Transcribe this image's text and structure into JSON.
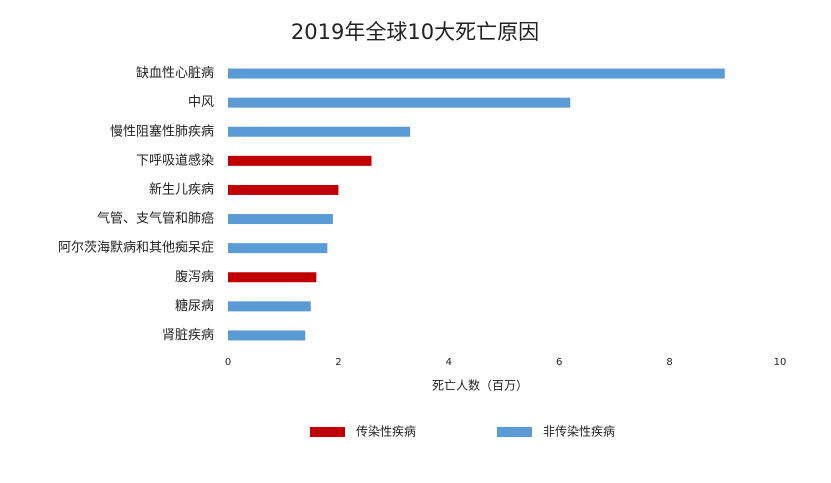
{
  "chart_data": {
    "type": "hbar",
    "title": "2019年全球10大死亡原因",
    "xlabel": "死亡人数（百万）",
    "categories": [
      "缺血性心脏病",
      "中风",
      "慢性阻塞性肺疾病",
      "下呼吸道感染",
      "新生儿疾病",
      "气管、支气管和肺癌",
      "阿尔茨海默病和其他痴呆症",
      "腹泻病",
      "糖尿病",
      "肾脏疾病"
    ],
    "series": [
      {
        "name": "传染性疾病",
        "color": "#c00000",
        "values": [
          null,
          null,
          null,
          2.6,
          2.0,
          null,
          null,
          1.6,
          null,
          null
        ]
      },
      {
        "name": "非传染性疾病",
        "color": "#5b9bd5",
        "values": [
          9.0,
          6.2,
          3.3,
          null,
          null,
          1.9,
          1.8,
          null,
          1.5,
          1.4
        ]
      }
    ],
    "xlim": [
      0,
      10
    ],
    "xticks": [
      0,
      2,
      4,
      6,
      8,
      10
    ],
    "grid": false,
    "legend": "bottom"
  }
}
